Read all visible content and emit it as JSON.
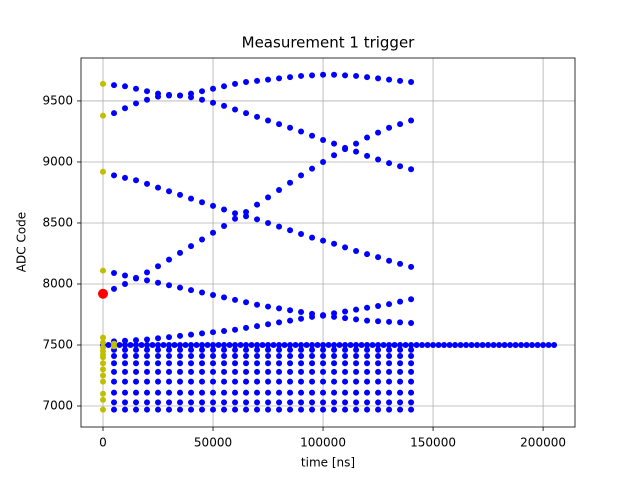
{
  "chart_data": {
    "type": "scatter",
    "title": "Measurement 1 trigger",
    "x_label": "time [ns]",
    "y_label": "ADC Code",
    "xlim": [
      -10000,
      214500
    ],
    "ylim": [
      6828,
      9852
    ],
    "xticks": [
      0,
      50000,
      100000,
      150000,
      200000
    ],
    "yticks": [
      7000,
      7500,
      8000,
      8500,
      9000,
      9500
    ],
    "grid": true,
    "x": [
      5000,
      10000,
      15000,
      20000,
      25000,
      30000,
      35000,
      40000,
      45000,
      50000,
      55000,
      60000,
      65000,
      70000,
      75000,
      80000,
      85000,
      90000,
      95000,
      100000,
      105000,
      110000,
      115000,
      120000,
      125000,
      130000,
      135000,
      140000
    ],
    "series": [
      {
        "color": "#0000ff",
        "values": [
          9630,
          9620,
          9600,
          9580,
          9560,
          9545,
          9545,
          9560,
          9580,
          9600,
          9620,
          9640,
          9655,
          9665,
          9675,
          9685,
          9695,
          9705,
          9710,
          9715,
          9715,
          9710,
          9705,
          9695,
          9685,
          9675,
          9665,
          9655
        ]
      },
      {
        "color": "#0000ff",
        "values": [
          9400,
          9440,
          9480,
          9510,
          9535,
          9550,
          9545,
          9530,
          9510,
          9485,
          9460,
          9430,
          9400,
          9370,
          9340,
          9310,
          9280,
          9250,
          9215,
          9180,
          9150,
          9115,
          9085,
          9050,
          9020,
          8990,
          8965,
          8940
        ]
      },
      {
        "color": "#0000ff",
        "values": [
          8890,
          8870,
          8850,
          8820,
          8790,
          8760,
          8730,
          8700,
          8670,
          8640,
          8610,
          8580,
          8555,
          8530,
          8500,
          8470,
          8440,
          8410,
          8380,
          8355,
          8330,
          8300,
          8270,
          8245,
          8220,
          8190,
          8165,
          8140
        ]
      },
      {
        "color": "#0000ff",
        "values": [
          7960,
          8000,
          8045,
          8095,
          8145,
          8200,
          8255,
          8310,
          8365,
          8420,
          8475,
          8535,
          8590,
          8650,
          8710,
          8770,
          8830,
          8890,
          8945,
          9000,
          9055,
          9105,
          9150,
          9200,
          9240,
          9280,
          9310,
          9340
        ]
      },
      {
        "color": "#0000ff",
        "values": [
          8090,
          8070,
          8050,
          8030,
          8010,
          7990,
          7970,
          7950,
          7930,
          7910,
          7890,
          7870,
          7850,
          7830,
          7815,
          7800,
          7785,
          7770,
          7755,
          7740,
          7730,
          7720,
          7710,
          7700,
          7695,
          7690,
          7685,
          7680
        ]
      },
      {
        "color": "#0000ff",
        "values": [
          7530,
          7535,
          7540,
          7545,
          7555,
          7565,
          7575,
          7585,
          7595,
          7605,
          7615,
          7625,
          7640,
          7655,
          7670,
          7685,
          7700,
          7715,
          7730,
          7745,
          7760,
          7775,
          7790,
          7805,
          7820,
          7835,
          7855,
          7875
        ]
      },
      {
        "color": "#0000ff",
        "values": [
          7460,
          7460,
          7460,
          7460,
          7460,
          7460,
          7460,
          7460,
          7460,
          7460,
          7460,
          7460,
          7460,
          7460,
          7460,
          7460,
          7460,
          7460,
          7460,
          7460,
          7460,
          7460,
          7460,
          7460,
          7460,
          7460,
          7460,
          7460
        ]
      },
      {
        "color": "#0000ff",
        "values": [
          7410,
          7410,
          7410,
          7410,
          7410,
          7410,
          7410,
          7410,
          7410,
          7410,
          7410,
          7410,
          7410,
          7410,
          7410,
          7410,
          7410,
          7410,
          7410,
          7410,
          7410,
          7410,
          7410,
          7410,
          7410,
          7410,
          7410,
          7410
        ]
      },
      {
        "color": "#0000ff",
        "values": [
          7350,
          7350,
          7350,
          7350,
          7350,
          7350,
          7350,
          7350,
          7350,
          7350,
          7350,
          7350,
          7350,
          7350,
          7350,
          7350,
          7350,
          7350,
          7350,
          7350,
          7350,
          7350,
          7350,
          7350,
          7350,
          7350,
          7350,
          7350
        ]
      },
      {
        "color": "#0000ff",
        "values": [
          7280,
          7280,
          7280,
          7280,
          7280,
          7280,
          7280,
          7280,
          7280,
          7280,
          7280,
          7280,
          7280,
          7280,
          7280,
          7280,
          7280,
          7280,
          7280,
          7280,
          7280,
          7280,
          7280,
          7280,
          7280,
          7280,
          7280,
          7280
        ]
      },
      {
        "color": "#0000ff",
        "values": [
          7200,
          7200,
          7200,
          7200,
          7200,
          7200,
          7200,
          7200,
          7200,
          7200,
          7200,
          7200,
          7200,
          7200,
          7200,
          7200,
          7200,
          7200,
          7200,
          7200,
          7200,
          7200,
          7200,
          7200,
          7200,
          7200,
          7200,
          7200
        ]
      },
      {
        "color": "#0000ff",
        "values": [
          7110,
          7110,
          7110,
          7110,
          7110,
          7110,
          7110,
          7110,
          7110,
          7110,
          7110,
          7110,
          7110,
          7110,
          7110,
          7110,
          7110,
          7110,
          7110,
          7110,
          7110,
          7110,
          7110,
          7110,
          7110,
          7110,
          7110,
          7110
        ]
      },
      {
        "color": "#0000ff",
        "values": [
          7030,
          7030,
          7030,
          7030,
          7030,
          7030,
          7030,
          7030,
          7030,
          7030,
          7030,
          7030,
          7030,
          7030,
          7030,
          7030,
          7030,
          7030,
          7030,
          7030,
          7030,
          7030,
          7030,
          7030,
          7030,
          7030,
          7030,
          7030
        ]
      },
      {
        "color": "#0000ff",
        "values": [
          6970,
          6970,
          6970,
          6970,
          6970,
          6970,
          6970,
          6970,
          6970,
          6970,
          6970,
          6970,
          6970,
          6970,
          6970,
          6970,
          6970,
          6970,
          6970,
          6970,
          6970,
          6970,
          6970,
          6970,
          6970,
          6970,
          6970,
          6970
        ]
      },
      {
        "color": "#0000ff",
        "x": [
          0,
          2500,
          5000,
          7500,
          10000,
          12500,
          15000,
          17500,
          20000,
          22500,
          25000,
          27500,
          30000,
          32500,
          35000,
          37500,
          40000,
          42500,
          45000,
          47500,
          50000,
          52500,
          55000,
          57500,
          60000,
          62500,
          65000,
          67500,
          70000,
          72500,
          75000,
          77500,
          80000,
          82500,
          85000,
          87500,
          90000,
          92500,
          95000,
          97500,
          100000,
          102500,
          105000,
          107500,
          110000,
          112500,
          115000,
          117500,
          120000,
          122500,
          125000,
          127500,
          130000,
          132500,
          135000,
          137500,
          140000,
          142500,
          145000,
          147500,
          150000,
          152500,
          155000,
          157500,
          160000,
          162500,
          165000,
          167500,
          170000,
          172500,
          175000,
          177500,
          180000,
          182500,
          185000,
          187500,
          190000,
          192500,
          195000,
          197500,
          200000,
          202500,
          205000
        ],
        "values": [
          7500,
          7500,
          7500,
          7500,
          7500,
          7500,
          7500,
          7500,
          7500,
          7500,
          7500,
          7500,
          7500,
          7500,
          7500,
          7500,
          7500,
          7500,
          7500,
          7500,
          7500,
          7500,
          7500,
          7500,
          7500,
          7500,
          7500,
          7500,
          7500,
          7500,
          7500,
          7500,
          7500,
          7500,
          7500,
          7500,
          7500,
          7500,
          7500,
          7500,
          7500,
          7500,
          7500,
          7500,
          7500,
          7500,
          7500,
          7500,
          7500,
          7500,
          7500,
          7500,
          7500,
          7500,
          7500,
          7500,
          7500,
          7500,
          7500,
          7500,
          7500,
          7500,
          7500,
          7500,
          7500,
          7500,
          7500,
          7500,
          7500,
          7500,
          7500,
          7500,
          7500,
          7500,
          7500,
          7500,
          7500,
          7500,
          7500,
          7500,
          7500,
          7500,
          7500
        ]
      },
      {
        "color": "#bfbf00",
        "x": [
          0,
          0,
          0,
          0,
          0,
          0,
          0,
          0,
          0,
          0,
          0,
          0,
          0,
          0,
          0,
          0,
          0,
          5000,
          5000
        ],
        "values": [
          9640,
          9380,
          8920,
          8110,
          7560,
          7520,
          7480,
          7450,
          7420,
          7400,
          7350,
          7300,
          7250,
          7200,
          7100,
          7050,
          6970,
          7510,
          7490
        ]
      },
      {
        "color": "#ff0000",
        "x": [
          0
        ],
        "values": [
          7920
        ],
        "size": 5
      }
    ]
  }
}
